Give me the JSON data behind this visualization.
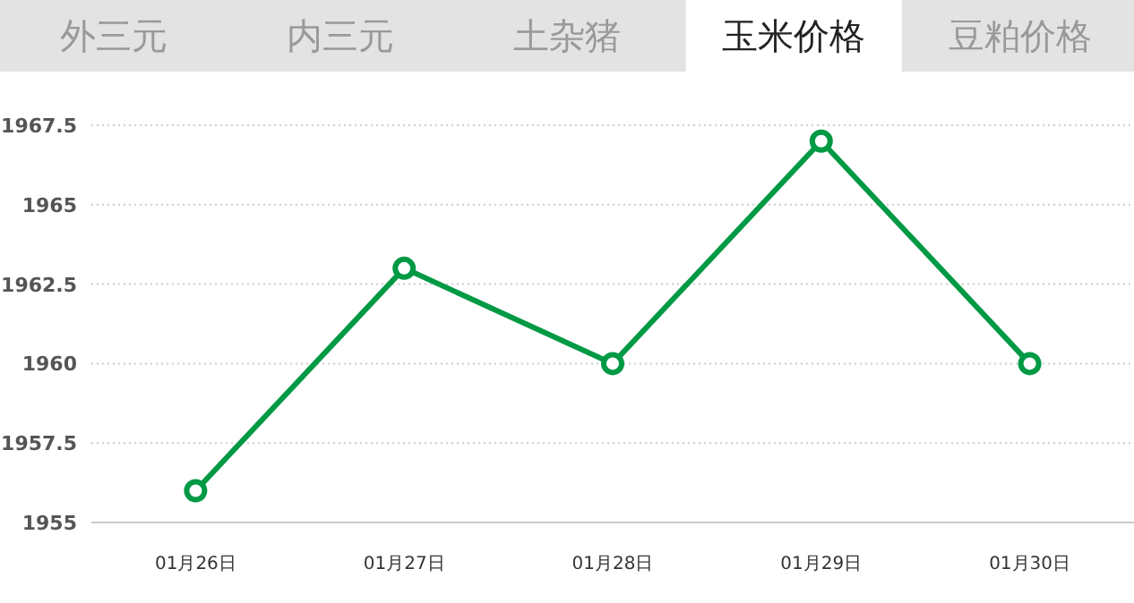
{
  "chart_data": {
    "type": "line",
    "title": "玉米价格",
    "annotations": [
      "外三元",
      "内三元",
      "土杂猪",
      "豆粕价格"
    ],
    "categories": [
      "01月26日",
      "01月27日",
      "01月28日",
      "01月29日",
      "01月30日"
    ],
    "series": [
      {
        "color": "#009944",
        "values": [
          1956,
          1963,
          1960,
          1967,
          1960
        ]
      }
    ],
    "ylim": [
      1955,
      1967.5
    ],
    "yticks": [
      1955,
      1957.5,
      1960,
      1962.5,
      1965,
      1967.5
    ],
    "grid": "y",
    "marker": "circle",
    "line_style": "solid"
  }
}
